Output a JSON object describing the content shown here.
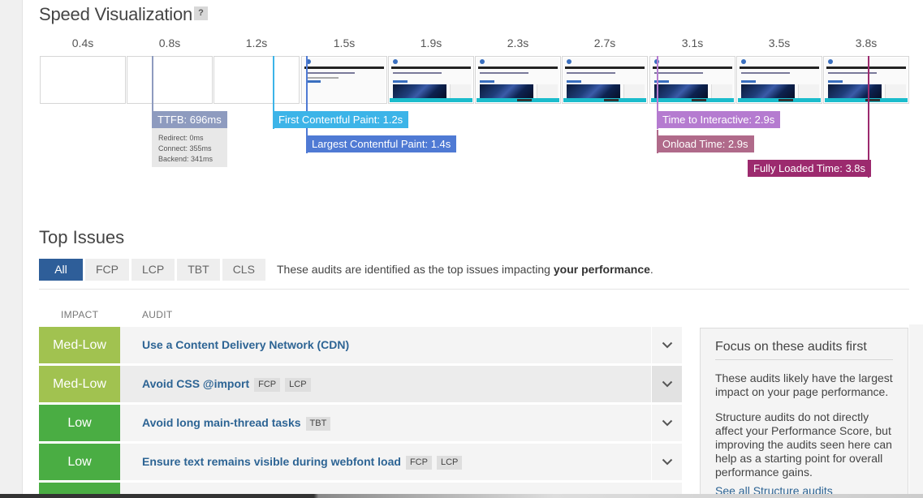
{
  "speed": {
    "title": "Speed Visualization",
    "help": "?",
    "time_labels": [
      "0.4s",
      "0.8s",
      "1.2s",
      "1.5s",
      "1.9s",
      "2.3s",
      "2.7s",
      "3.1s",
      "3.5s",
      "3.8s"
    ],
    "markers": {
      "ttfb": "TTFB: 696ms",
      "redirect": "Redirect: 0ms",
      "connect": "Connect: 355ms",
      "backend": "Backend: 341ms",
      "fcp": "First Contentful Paint: 1.2s",
      "lcp": "Largest Contentful Paint: 1.4s",
      "tti": "Time to Interactive: 2.9s",
      "onload": "Onload Time: 2.9s",
      "fully": "Fully Loaded Time: 3.8s"
    },
    "colors": {
      "ttfb": "#8e9bbf",
      "fcp": "#3cb4e8",
      "lcp": "#4f7ad4",
      "tti": "#b57bd0",
      "onload": "#b06a8a",
      "fully": "#9c2a6e"
    }
  },
  "issues": {
    "title": "Top Issues",
    "tabs": [
      "All",
      "FCP",
      "LCP",
      "TBT",
      "CLS"
    ],
    "desc_pre": "These audits are identified as the top issues impacting ",
    "desc_bold": "your performance",
    "desc_post": ".",
    "col_impact": "IMPACT",
    "col_audit": "AUDIT",
    "rows": [
      {
        "impact": "Med-Low",
        "audit": "Use a Content Delivery Network (CDN)",
        "tags": []
      },
      {
        "impact": "Med-Low",
        "audit": "Avoid CSS @import",
        "tags": [
          "FCP",
          "LCP"
        ]
      },
      {
        "impact": "Low",
        "audit": "Avoid long main-thread tasks",
        "tags": [
          "TBT"
        ]
      },
      {
        "impact": "Low",
        "audit": "Ensure text remains visible during webfont load",
        "tags": [
          "FCP",
          "LCP"
        ]
      }
    ],
    "focus": {
      "title": "Focus on these audits first",
      "p1": "These audits likely have the largest impact on your page performance.",
      "p2": "Structure audits do not directly affect your Performance Score, but improving the audits seen here can help as a starting point for overall performance gains.",
      "link": "See all Structure audits"
    }
  },
  "icons": [
    "help-icon",
    "chevron-down-icon"
  ]
}
